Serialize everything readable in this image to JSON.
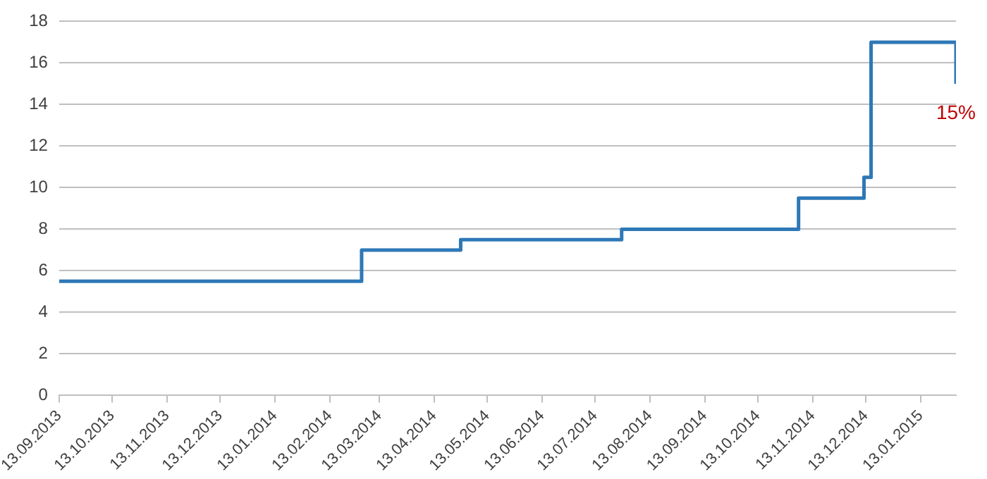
{
  "chart_data": {
    "type": "step",
    "x": [
      "2013-09-13",
      "2014-03-03",
      "2014-04-28",
      "2014-07-28",
      "2014-11-05",
      "2014-12-12",
      "2014-12-16",
      "2015-02-02"
    ],
    "series": [
      {
        "color": "#2e78b7",
        "values": [
          5.5,
          7,
          7.5,
          8,
          9.5,
          10.5,
          17,
          15
        ]
      }
    ],
    "xlim": [
      "2013-09-13",
      "2015-02-02"
    ],
    "xticks": [
      {
        "value": "2013-09-13",
        "label": "13.09.2013"
      },
      {
        "value": "2013-10-13",
        "label": "13.10.2013"
      },
      {
        "value": "2013-11-13",
        "label": "13.11.2013"
      },
      {
        "value": "2013-12-13",
        "label": "13.12.2013"
      },
      {
        "value": "2014-01-13",
        "label": "13.01.2014"
      },
      {
        "value": "2014-02-13",
        "label": "13.02.2014"
      },
      {
        "value": "2014-03-13",
        "label": "13.03.2014"
      },
      {
        "value": "2014-04-13",
        "label": "13.04.2014"
      },
      {
        "value": "2014-05-13",
        "label": "13.05.2014"
      },
      {
        "value": "2014-06-13",
        "label": "13.06.2014"
      },
      {
        "value": "2014-07-13",
        "label": "13.07.2014"
      },
      {
        "value": "2014-08-13",
        "label": "13.08.2014"
      },
      {
        "value": "2014-09-13",
        "label": "13.09.2014"
      },
      {
        "value": "2014-10-13",
        "label": "13.10.2014"
      },
      {
        "value": "2014-11-13",
        "label": "13.11.2014"
      },
      {
        "value": "2014-12-13",
        "label": "13.12.2014"
      },
      {
        "value": "2015-01-13",
        "label": "13.01.2015"
      }
    ],
    "ylim": [
      0,
      18
    ],
    "yticks": [
      0,
      2,
      4,
      6,
      8,
      10,
      12,
      14,
      16,
      18
    ],
    "grid": "y",
    "legend": false,
    "marker": "none",
    "line_style": "solid",
    "annotations": [
      {
        "text": "15%",
        "x": "2015-02-02",
        "y": 15
      }
    ]
  }
}
